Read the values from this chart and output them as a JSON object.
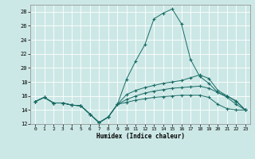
{
  "xlabel": "Humidex (Indice chaleur)",
  "xlim": [
    -0.5,
    23.5
  ],
  "ylim": [
    12,
    29
  ],
  "xticks": [
    0,
    1,
    2,
    3,
    4,
    5,
    6,
    7,
    8,
    9,
    10,
    11,
    12,
    13,
    14,
    15,
    16,
    17,
    18,
    19,
    20,
    21,
    22,
    23
  ],
  "yticks": [
    12,
    14,
    16,
    18,
    20,
    22,
    24,
    26,
    28
  ],
  "background_color": "#cce8e6",
  "grid_color": "#b0d4d0",
  "line_color": "#1a6b65",
  "series": [
    {
      "x": [
        0,
        1,
        2,
        3,
        4,
        5,
        6,
        7,
        8,
        9,
        10,
        11,
        12,
        13,
        14,
        15,
        16,
        17,
        18,
        19,
        20,
        21,
        22,
        23
      ],
      "y": [
        15.2,
        15.8,
        15.0,
        15.0,
        14.7,
        14.6,
        13.4,
        12.2,
        13.0,
        14.8,
        18.4,
        21.0,
        23.3,
        27.0,
        27.8,
        28.4,
        26.3,
        21.2,
        18.8,
        17.8,
        16.5,
        16.0,
        15.2,
        14.0
      ]
    },
    {
      "x": [
        0,
        1,
        2,
        3,
        4,
        5,
        6,
        7,
        8,
        9,
        10,
        11,
        12,
        13,
        14,
        15,
        16,
        17,
        18,
        19,
        20,
        21,
        22,
        23
      ],
      "y": [
        15.2,
        15.8,
        15.0,
        15.0,
        14.7,
        14.6,
        13.4,
        12.2,
        13.0,
        14.8,
        16.2,
        16.8,
        17.2,
        17.5,
        17.8,
        18.0,
        18.2,
        18.6,
        19.0,
        18.5,
        16.8,
        16.0,
        15.3,
        14.0
      ]
    },
    {
      "x": [
        0,
        1,
        2,
        3,
        4,
        5,
        6,
        7,
        8,
        9,
        10,
        11,
        12,
        13,
        14,
        15,
        16,
        17,
        18,
        19,
        20,
        21,
        22,
        23
      ],
      "y": [
        15.2,
        15.8,
        15.0,
        15.0,
        14.7,
        14.6,
        13.4,
        12.2,
        13.0,
        14.8,
        15.5,
        16.0,
        16.4,
        16.7,
        16.9,
        17.1,
        17.2,
        17.3,
        17.4,
        17.1,
        16.5,
        15.8,
        14.8,
        14.0
      ]
    },
    {
      "x": [
        0,
        1,
        2,
        3,
        4,
        5,
        6,
        7,
        8,
        9,
        10,
        11,
        12,
        13,
        14,
        15,
        16,
        17,
        18,
        19,
        20,
        21,
        22,
        23
      ],
      "y": [
        15.2,
        15.8,
        15.0,
        15.0,
        14.7,
        14.6,
        13.4,
        12.2,
        13.0,
        14.8,
        15.1,
        15.4,
        15.6,
        15.8,
        15.9,
        16.0,
        16.1,
        16.1,
        16.1,
        15.8,
        14.8,
        14.2,
        14.0,
        14.0
      ]
    }
  ]
}
